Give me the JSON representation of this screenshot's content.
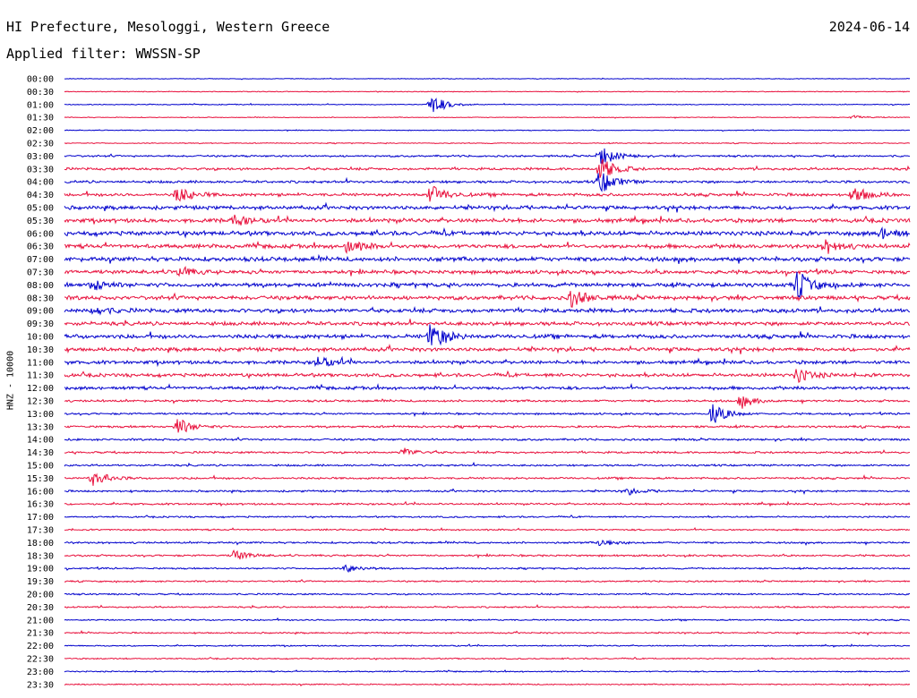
{
  "header": {
    "title": "HI Prefecture, Mesologgi, Western Greece",
    "filter": "Applied filter: WWSSN-SP",
    "date": "2024-06-14"
  },
  "chart_data": {
    "type": "line",
    "ylabel": "HNZ - 10000",
    "row_labels": [
      "00:00",
      "00:30",
      "01:00",
      "01:30",
      "02:00",
      "02:30",
      "03:00",
      "03:30",
      "04:00",
      "04:30",
      "05:00",
      "05:30",
      "06:00",
      "06:30",
      "07:00",
      "07:30",
      "08:00",
      "08:30",
      "09:00",
      "09:30",
      "10:00",
      "10:30",
      "11:00",
      "11:30",
      "12:00",
      "12:30",
      "13:00",
      "13:30",
      "14:00",
      "14:30",
      "15:00",
      "15:30",
      "16:00",
      "16:30",
      "17:00",
      "17:30",
      "18:00",
      "18:30",
      "19:00",
      "19:30",
      "20:00",
      "20:30",
      "21:00",
      "21:30",
      "22:00",
      "22:30",
      "23:00",
      "23:30"
    ],
    "colors": [
      "#0000cc",
      "#e8103c"
    ],
    "grid": false,
    "noise_level": [
      0.4,
      0.5,
      0.6,
      0.5,
      0.5,
      0.6,
      1.2,
      1.6,
      1.6,
      2.0,
      2.4,
      2.6,
      2.8,
      2.6,
      2.8,
      2.4,
      2.6,
      2.6,
      2.6,
      2.4,
      2.6,
      2.4,
      2.2,
      2.2,
      2.0,
      1.4,
      1.2,
      1.4,
      1.3,
      1.3,
      1.2,
      1.3,
      1.2,
      1.2,
      1.0,
      1.0,
      1.2,
      1.2,
      1.0,
      1.0,
      1.0,
      1.0,
      0.9,
      0.9,
      0.8,
      0.8,
      0.8,
      0.8
    ],
    "events": [
      {
        "row": 2,
        "minute": 13,
        "amplitude": 12
      },
      {
        "row": 3,
        "minute": 28,
        "amplitude": 2
      },
      {
        "row": 6,
        "minute": 19,
        "amplitude": 12
      },
      {
        "row": 7,
        "minute": 19,
        "amplitude": 14
      },
      {
        "row": 8,
        "minute": 19,
        "amplitude": 14
      },
      {
        "row": 9,
        "minute": 4,
        "amplitude": 9
      },
      {
        "row": 9,
        "minute": 13,
        "amplitude": 11
      },
      {
        "row": 9,
        "minute": 28,
        "amplitude": 10
      },
      {
        "row": 11,
        "minute": 6,
        "amplitude": 6
      },
      {
        "row": 12,
        "minute": 29,
        "amplitude": 6
      },
      {
        "row": 13,
        "minute": 10,
        "amplitude": 8
      },
      {
        "row": 13,
        "minute": 27,
        "amplitude": 8
      },
      {
        "row": 15,
        "minute": 4,
        "amplitude": 6
      },
      {
        "row": 16,
        "minute": 1,
        "amplitude": 7
      },
      {
        "row": 16,
        "minute": 26,
        "amplitude": 16
      },
      {
        "row": 17,
        "minute": 18,
        "amplitude": 10
      },
      {
        "row": 18,
        "minute": 1,
        "amplitude": 5
      },
      {
        "row": 20,
        "minute": 13,
        "amplitude": 16
      },
      {
        "row": 22,
        "minute": 9,
        "amplitude": 7
      },
      {
        "row": 23,
        "minute": 26,
        "amplitude": 8
      },
      {
        "row": 25,
        "minute": 24,
        "amplitude": 7
      },
      {
        "row": 26,
        "minute": 23,
        "amplitude": 12
      },
      {
        "row": 27,
        "minute": 4,
        "amplitude": 10
      },
      {
        "row": 29,
        "minute": 12,
        "amplitude": 5
      },
      {
        "row": 31,
        "minute": 1,
        "amplitude": 9
      },
      {
        "row": 32,
        "minute": 20,
        "amplitude": 4
      },
      {
        "row": 36,
        "minute": 19,
        "amplitude": 4
      },
      {
        "row": 37,
        "minute": 6,
        "amplitude": 6
      },
      {
        "row": 38,
        "minute": 10,
        "amplitude": 5
      }
    ]
  }
}
